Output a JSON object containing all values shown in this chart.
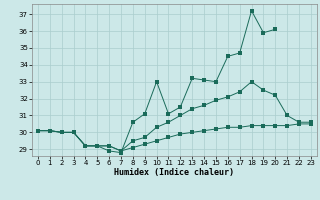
{
  "xlabel": "Humidex (Indice chaleur)",
  "x": [
    0,
    1,
    2,
    3,
    4,
    5,
    6,
    7,
    8,
    9,
    10,
    11,
    12,
    13,
    14,
    15,
    16,
    17,
    18,
    19,
    20,
    21,
    22,
    23
  ],
  "line_top": [
    30.1,
    30.1,
    30.0,
    30.0,
    29.2,
    29.2,
    28.9,
    28.8,
    30.6,
    31.1,
    33.0,
    31.1,
    31.5,
    33.2,
    33.1,
    33.0,
    34.5,
    34.7,
    37.2,
    35.9,
    36.1,
    null,
    null,
    null
  ],
  "line_mid": [
    30.1,
    30.1,
    30.0,
    30.0,
    29.2,
    29.2,
    29.2,
    28.9,
    29.5,
    29.7,
    30.3,
    30.6,
    31.0,
    31.4,
    31.6,
    31.9,
    32.1,
    32.4,
    33.0,
    32.5,
    32.2,
    31.0,
    30.6,
    30.6
  ],
  "line_bot": [
    30.1,
    30.1,
    30.0,
    30.0,
    29.2,
    29.2,
    29.2,
    28.9,
    29.1,
    29.3,
    29.5,
    29.7,
    29.9,
    30.0,
    30.1,
    30.2,
    30.3,
    30.3,
    30.4,
    30.4,
    30.4,
    30.4,
    30.5,
    30.5
  ],
  "bg_color": "#cce8e8",
  "grid_color": "#aacece",
  "line_color": "#1a6b5a",
  "ylim": [
    28.6,
    37.6
  ],
  "yticks": [
    29,
    30,
    31,
    32,
    33,
    34,
    35,
    36,
    37
  ],
  "xticks": [
    0,
    1,
    2,
    3,
    4,
    5,
    6,
    7,
    8,
    9,
    10,
    11,
    12,
    13,
    14,
    15,
    16,
    17,
    18,
    19,
    20,
    21,
    22,
    23
  ]
}
